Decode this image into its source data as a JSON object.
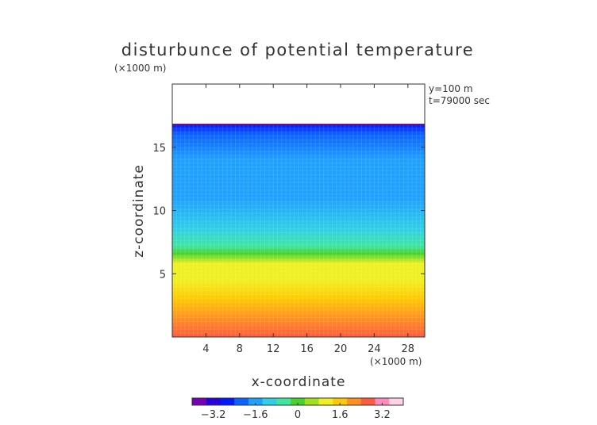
{
  "chart_data": {
    "type": "heatmap",
    "title": "disturbunce of potential temperature",
    "scale_note": "(×1000 m)",
    "xlabel": "x-coordinate",
    "ylabel": "z-coordinate",
    "x_unit_note": "(×1000 m)",
    "annotations": [
      "y=100 m",
      "t=79000 sec"
    ],
    "xlim": [
      0,
      30
    ],
    "ylim": [
      0,
      20
    ],
    "x_ticks": [
      4,
      8,
      12,
      16,
      20,
      24,
      28
    ],
    "y_ticks": [
      5,
      10,
      15
    ],
    "x_tick_labels": [
      "4",
      "8",
      "12",
      "16",
      "20",
      "24",
      "28"
    ],
    "y_tick_labels": [
      "5",
      "10",
      "15"
    ],
    "colorbar": {
      "range": [
        -4,
        4
      ],
      "ticks": [
        -3.2,
        -1.6,
        0,
        1.6,
        3.2
      ],
      "tick_labels": [
        "−3.2",
        "−1.6",
        "0",
        "1.6",
        "3.2"
      ],
      "colors": [
        "#7a00b8",
        "#2800e0",
        "#0018ff",
        "#0a64ff",
        "#1ea0ff",
        "#2ed0e6",
        "#3ee6a0",
        "#46d22a",
        "#a0e01e",
        "#f0f020",
        "#ffc800",
        "#ff9020",
        "#ff5a3c",
        "#ff8cbe",
        "#ffd2e6"
      ]
    },
    "field_top_z": 16.8,
    "field_rows": [
      {
        "z": 0.0,
        "value": 2.6
      },
      {
        "z": 1.5,
        "value": 2.3
      },
      {
        "z": 3.0,
        "value": 1.9
      },
      {
        "z": 4.5,
        "value": 1.4
      },
      {
        "z": 5.8,
        "value": 0.9
      },
      {
        "z": 6.6,
        "value": 0.2
      },
      {
        "z": 7.2,
        "value": -0.8
      },
      {
        "z": 8.5,
        "value": -1.3
      },
      {
        "z": 11.0,
        "value": -1.5
      },
      {
        "z": 14.0,
        "value": -1.8
      },
      {
        "z": 16.0,
        "value": -2.3
      },
      {
        "z": 16.8,
        "value": -3.0
      }
    ]
  }
}
